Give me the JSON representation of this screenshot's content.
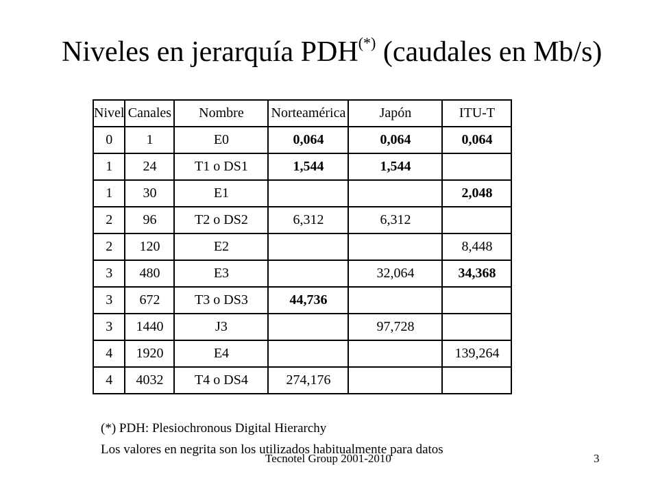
{
  "title": {
    "main": "Niveles en jerarquía PDH",
    "sup": "(*)",
    "rest": " (caudales en Mb/s)"
  },
  "table": {
    "headers": [
      "Nivel",
      "Canales",
      "Nombre",
      "Norteamérica",
      "Japón",
      "ITU-T"
    ],
    "rows": [
      [
        "0",
        "1",
        "E0",
        "0,064",
        "0,064",
        "0,064"
      ],
      [
        "1",
        "24",
        "T1 o DS1",
        "1,544",
        "1,544",
        ""
      ],
      [
        "1",
        "30",
        "E1",
        "",
        "",
        "2,048"
      ],
      [
        "2",
        "96",
        "T2 o DS2",
        "6,312",
        "6,312",
        ""
      ],
      [
        "2",
        "120",
        "E2",
        "",
        "",
        "8,448"
      ],
      [
        "3",
        "480",
        "E3",
        "",
        "32,064",
        "34,368"
      ],
      [
        "3",
        "672",
        "T3 o DS3",
        "44,736",
        "",
        ""
      ],
      [
        "3",
        "1440",
        "J3",
        "",
        "97,728",
        ""
      ],
      [
        "4",
        "1920",
        "E4",
        "",
        "",
        "139,264"
      ],
      [
        "4",
        "4032",
        "T4 o DS4",
        "274,176",
        "",
        ""
      ]
    ],
    "bold_cells": [
      [
        0,
        3
      ],
      [
        0,
        4
      ],
      [
        0,
        5
      ],
      [
        1,
        3
      ],
      [
        1,
        4
      ],
      [
        2,
        5
      ],
      [
        5,
        5
      ],
      [
        6,
        3
      ]
    ]
  },
  "notes": {
    "pdh": "(*) PDH: Plesiochronous Digital Hierarchy",
    "bold": "Los valores en negrita son los utilizados habitualmente para datos"
  },
  "footer": {
    "company": "Tecnotel Group 2001-2010",
    "page": "3"
  }
}
